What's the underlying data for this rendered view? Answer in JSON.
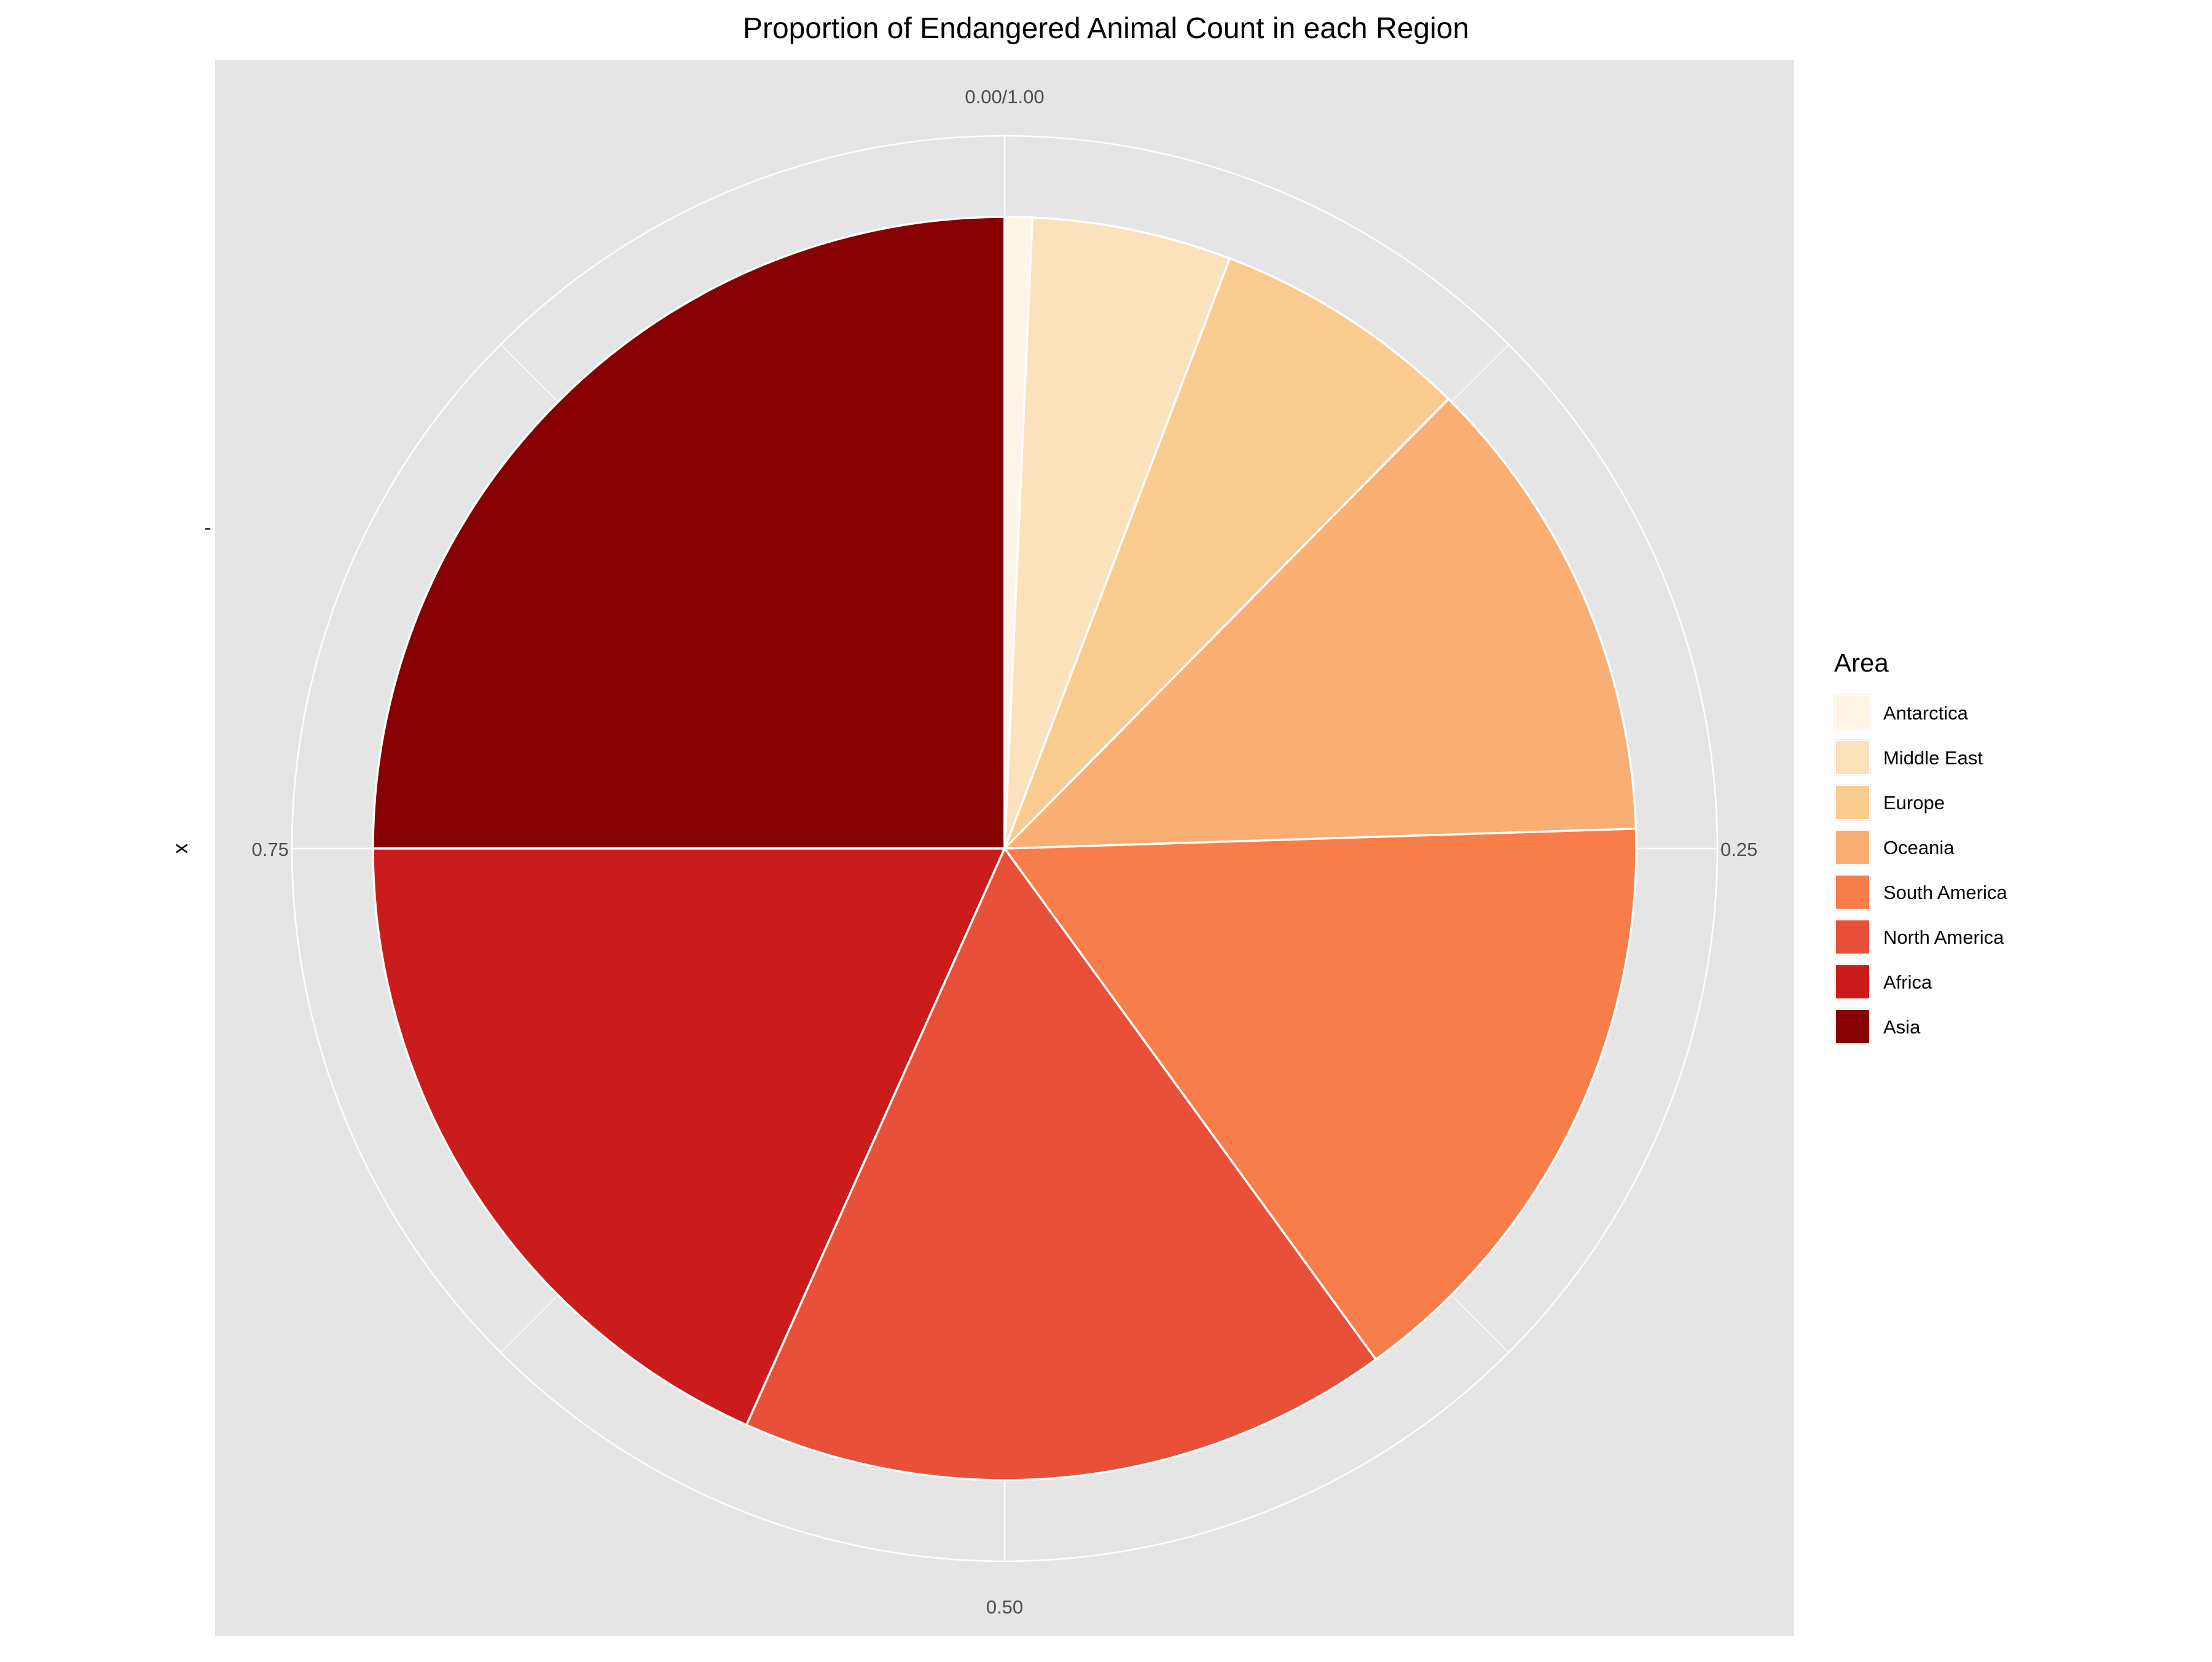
{
  "chart_data": {
    "type": "pie",
    "title": "Proportion of Endangered Animal Count in each Region",
    "xlabel": "x",
    "ylabel": "",
    "y_tick_label": "-",
    "angle_ticks": [
      {
        "value": 0.0,
        "label": "0.00/1.00"
      },
      {
        "value": 0.25,
        "label": "0.25"
      },
      {
        "value": 0.5,
        "label": "0.50"
      },
      {
        "value": 0.75,
        "label": "0.75"
      }
    ],
    "grid": true,
    "legend_title": "Area",
    "legend_position": "right",
    "categories": [
      "Antarctica",
      "Middle East",
      "Europe",
      "Oceania",
      "South America",
      "North America",
      "Africa",
      "Asia"
    ],
    "values": [
      0.007,
      0.051,
      0.066,
      0.121,
      0.155,
      0.167,
      0.183,
      0.25
    ],
    "colors": [
      "#FFF5E6",
      "#FCE1BD",
      "#FACB8F",
      "#F9AE74",
      "#F77D4A",
      "#E8503A",
      "#CB1C1C",
      "#870002"
    ],
    "panel_background": "#E5E5E5",
    "grid_color": "#FFFFFF"
  }
}
